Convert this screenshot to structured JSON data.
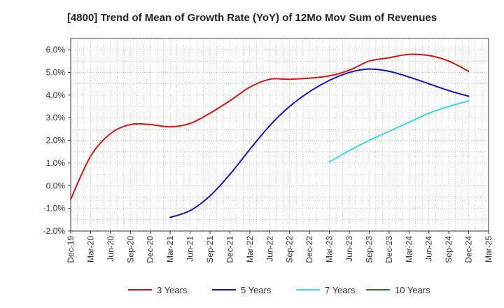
{
  "chart_data": {
    "type": "line",
    "title": "[4800]  Trend of Mean of Growth Rate (YoY) of 12Mo Mov Sum of Revenues",
    "xlabel": "",
    "ylabel": "",
    "ylim": [
      -2.0,
      6.5
    ],
    "y_ticks": [
      -2.0,
      -1.0,
      0.0,
      1.0,
      2.0,
      3.0,
      4.0,
      5.0,
      6.0
    ],
    "y_tick_labels": [
      "-2.0%",
      "-1.0%",
      "0.0%",
      "1.0%",
      "2.0%",
      "3.0%",
      "4.0%",
      "5.0%",
      "6.0%"
    ],
    "x_tick_labels": [
      "Dec-19",
      "Mar-20",
      "Jun-20",
      "Sep-20",
      "Dec-20",
      "Mar-21",
      "Jun-21",
      "Sep-21",
      "Dec-21",
      "Mar-22",
      "Jun-22",
      "Sep-22",
      "Dec-22",
      "Mar-23",
      "Jun-23",
      "Sep-23",
      "Dec-23",
      "Mar-24",
      "Jun-24",
      "Sep-24",
      "Dec-24",
      "Mar-25"
    ],
    "x_range_months": [
      0,
      63
    ],
    "grid": true,
    "legend_position": "bottom",
    "series": [
      {
        "name": "3 Years",
        "color": "#dd1111",
        "x": [
          0,
          3,
          6,
          9,
          12,
          15,
          18,
          21,
          24,
          27,
          30,
          33,
          36,
          39,
          42,
          45,
          48,
          51,
          54,
          57,
          60
        ],
        "values": [
          -0.6,
          1.3,
          2.3,
          2.7,
          2.7,
          2.6,
          2.75,
          3.2,
          3.75,
          4.35,
          4.7,
          4.7,
          4.75,
          4.85,
          5.1,
          5.5,
          5.65,
          5.8,
          5.75,
          5.5,
          5.05
        ]
      },
      {
        "name": "5 Years",
        "color": "#1111cc",
        "x": [
          15,
          18,
          21,
          24,
          27,
          30,
          33,
          36,
          39,
          42,
          45,
          48,
          51,
          54,
          57,
          60
        ],
        "values": [
          -1.4,
          -1.1,
          -0.45,
          0.5,
          1.6,
          2.65,
          3.5,
          4.15,
          4.65,
          5.0,
          5.15,
          5.05,
          4.8,
          4.5,
          4.2,
          3.95
        ]
      },
      {
        "name": "7 Years",
        "color": "#33dddd",
        "x": [
          39,
          42,
          45,
          48,
          51,
          54,
          57,
          60
        ],
        "values": [
          1.05,
          1.55,
          2.0,
          2.4,
          2.8,
          3.2,
          3.5,
          3.75
        ]
      },
      {
        "name": "10 Years",
        "color": "#228822",
        "x": [],
        "values": []
      }
    ]
  }
}
